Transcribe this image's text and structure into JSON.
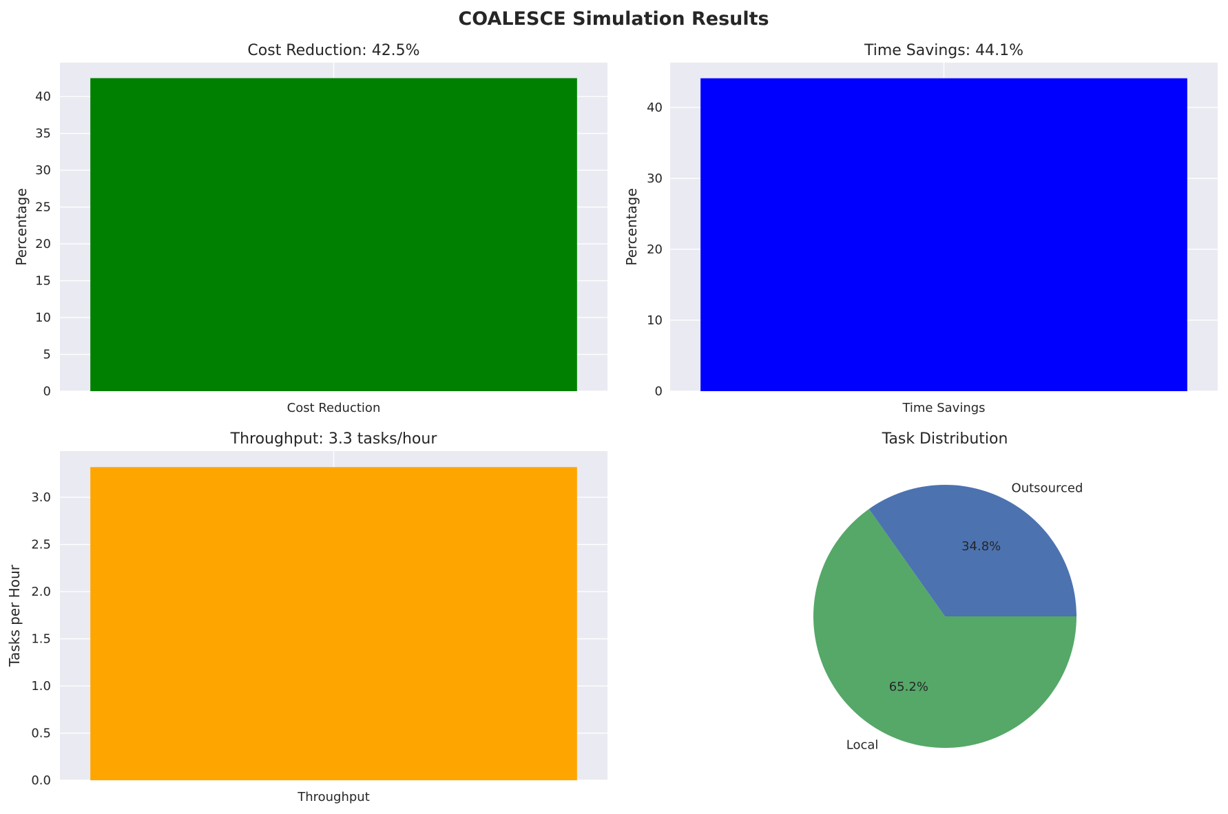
{
  "figure": {
    "title": "COALESCE Simulation Results",
    "background": "#ffffff",
    "axes_background": "#eaeaf2",
    "grid_color": "#ffffff",
    "text_color": "#262626"
  },
  "chart_data": [
    {
      "type": "bar",
      "title": "Cost Reduction: 42.5%",
      "categories": [
        "Cost Reduction"
      ],
      "values": [
        42.5
      ],
      "color": "#008000",
      "xlabel": "",
      "ylabel": "Percentage",
      "ylim": [
        0,
        44.6
      ],
      "yticks": [
        0,
        5,
        10,
        15,
        20,
        25,
        30,
        35,
        40
      ],
      "ytick_labels": [
        "0",
        "5",
        "10",
        "15",
        "20",
        "25",
        "30",
        "35",
        "40"
      ],
      "grid": true,
      "legend": "none"
    },
    {
      "type": "bar",
      "title": "Time Savings: 44.1%",
      "categories": [
        "Time Savings"
      ],
      "values": [
        44.1
      ],
      "color": "#0000ff",
      "xlabel": "",
      "ylabel": "Percentage",
      "ylim": [
        0,
        46.3
      ],
      "yticks": [
        0,
        10,
        20,
        30,
        40
      ],
      "ytick_labels": [
        "0",
        "10",
        "20",
        "30",
        "40"
      ],
      "grid": true,
      "legend": "none"
    },
    {
      "type": "bar",
      "title": "Throughput: 3.3 tasks/hour",
      "categories": [
        "Throughput"
      ],
      "values": [
        3.32
      ],
      "color": "#ffa500",
      "xlabel": "",
      "ylabel": "Tasks per Hour",
      "ylim": [
        0,
        3.49
      ],
      "yticks": [
        0,
        0.5,
        1,
        1.5,
        2,
        2.5,
        3
      ],
      "ytick_labels": [
        "0.0",
        "0.5",
        "1.0",
        "1.5",
        "2.0",
        "2.5",
        "3.0"
      ],
      "grid": true,
      "legend": "none"
    },
    {
      "type": "pie",
      "title": "Task Distribution",
      "slices": [
        {
          "label": "Outsourced",
          "value": 34.8,
          "pct_label": "34.8%",
          "color": "#4c72b0"
        },
        {
          "label": "Local",
          "value": 65.2,
          "pct_label": "65.2%",
          "color": "#55a868"
        }
      ],
      "start_angle_deg": 0,
      "direction": "counterclockwise"
    }
  ]
}
